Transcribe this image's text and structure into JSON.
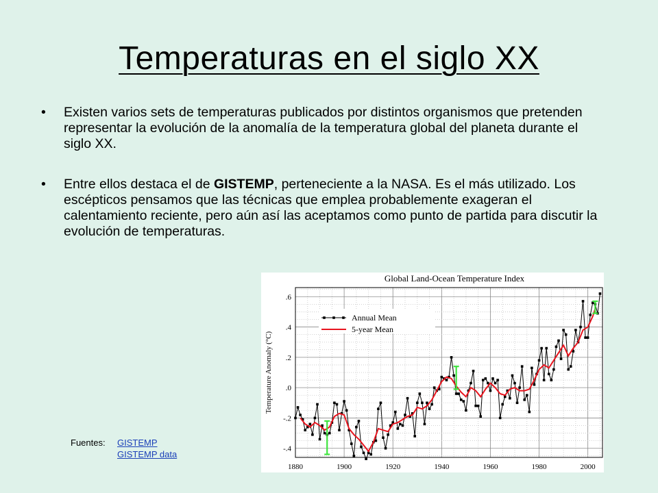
{
  "slide": {
    "title": "Temperaturas en el siglo XX",
    "bullets": [
      {
        "text": "Existen varios sets de temperaturas publicados por distintos organismos que pretenden representar la evolución de la anomalía de la temperatura global del planeta durante el siglo XX."
      },
      {
        "before": "Entre ellos destaca el de ",
        "bold": "GISTEMP",
        "after": ", perteneciente a la NASA. Es el más utilizado. Los escépticos pensamos que las técnicas que emplea probablemente exageran el calentamiento reciente, pero aún así las aceptamos como punto de partida para discutir la evolución de temperaturas."
      }
    ],
    "bullet_symbol": "•",
    "sources": {
      "label": "Fuentes: ",
      "links": [
        "GISTEMP",
        "GISTEMP data"
      ]
    }
  },
  "colors": {
    "background": "#dff2ea",
    "annual": "#000000",
    "five_year": "#e8141e",
    "uncertainty": "#3fe43f",
    "link": "#1a3fb8"
  },
  "chart_data": {
    "type": "line",
    "title": "Global Land-Ocean Temperature Index",
    "xlabel": "",
    "ylabel": "Temperature Anomaly (°C)",
    "xlim": [
      1880,
      2006
    ],
    "ylim": [
      -0.46,
      0.66
    ],
    "xticks": [
      1880,
      1900,
      1920,
      1940,
      1960,
      1980,
      2000
    ],
    "yticks": [
      -0.4,
      -0.2,
      0.0,
      0.2,
      0.4,
      0.6
    ],
    "ytick_labels": [
      "-.4",
      "-.2",
      ".0",
      ".2",
      ".4",
      ".6"
    ],
    "grid": true,
    "legend_position": "top-left",
    "series": [
      {
        "name": "Annual Mean",
        "style": "line-with-square-markers",
        "x": [
          1880,
          1881,
          1882,
          1883,
          1884,
          1885,
          1886,
          1887,
          1888,
          1889,
          1890,
          1891,
          1892,
          1893,
          1894,
          1895,
          1896,
          1897,
          1898,
          1899,
          1900,
          1901,
          1902,
          1903,
          1904,
          1905,
          1906,
          1907,
          1908,
          1909,
          1910,
          1911,
          1912,
          1913,
          1914,
          1915,
          1916,
          1917,
          1918,
          1919,
          1920,
          1921,
          1922,
          1923,
          1924,
          1925,
          1926,
          1927,
          1928,
          1929,
          1930,
          1931,
          1932,
          1933,
          1934,
          1935,
          1936,
          1937,
          1938,
          1939,
          1940,
          1941,
          1942,
          1943,
          1944,
          1945,
          1946,
          1947,
          1948,
          1949,
          1950,
          1951,
          1952,
          1953,
          1954,
          1955,
          1956,
          1957,
          1958,
          1959,
          1960,
          1961,
          1962,
          1963,
          1964,
          1965,
          1966,
          1967,
          1968,
          1969,
          1970,
          1971,
          1972,
          1973,
          1974,
          1975,
          1976,
          1977,
          1978,
          1979,
          1980,
          1981,
          1982,
          1983,
          1984,
          1985,
          1986,
          1987,
          1988,
          1989,
          1990,
          1991,
          1992,
          1993,
          1994,
          1995,
          1996,
          1997,
          1998,
          1999,
          2000,
          2001,
          2002,
          2003,
          2004,
          2005
        ],
        "y": [
          -0.2,
          -0.13,
          -0.18,
          -0.21,
          -0.28,
          -0.26,
          -0.24,
          -0.31,
          -0.2,
          -0.11,
          -0.34,
          -0.25,
          -0.3,
          -0.31,
          -0.3,
          -0.23,
          -0.1,
          -0.11,
          -0.28,
          -0.17,
          -0.09,
          -0.15,
          -0.28,
          -0.37,
          -0.45,
          -0.26,
          -0.22,
          -0.39,
          -0.43,
          -0.47,
          -0.43,
          -0.44,
          -0.36,
          -0.35,
          -0.14,
          -0.1,
          -0.33,
          -0.4,
          -0.31,
          -0.25,
          -0.23,
          -0.16,
          -0.27,
          -0.24,
          -0.25,
          -0.18,
          -0.07,
          -0.19,
          -0.17,
          -0.32,
          -0.1,
          -0.04,
          -0.1,
          -0.24,
          -0.1,
          -0.14,
          -0.11,
          0.0,
          -0.02,
          -0.01,
          0.07,
          0.06,
          0.05,
          0.07,
          0.2,
          0.08,
          -0.04,
          -0.04,
          -0.08,
          -0.09,
          -0.15,
          -0.02,
          0.03,
          0.11,
          -0.12,
          -0.12,
          -0.19,
          0.05,
          0.06,
          0.03,
          -0.02,
          0.06,
          0.03,
          0.05,
          -0.2,
          -0.11,
          -0.06,
          -0.02,
          -0.07,
          0.08,
          0.03,
          -0.1,
          0.0,
          0.14,
          -0.08,
          -0.05,
          -0.16,
          0.13,
          0.02,
          0.09,
          0.18,
          0.26,
          0.05,
          0.26,
          0.09,
          0.05,
          0.12,
          0.27,
          0.31,
          0.19,
          0.38,
          0.35,
          0.12,
          0.14,
          0.24,
          0.38,
          0.3,
          0.4,
          0.57,
          0.33,
          0.33,
          0.48,
          0.56,
          0.55,
          0.49,
          0.62
        ]
      },
      {
        "name": "5-year Mean",
        "style": "line",
        "x": [
          1882,
          1884,
          1886,
          1888,
          1890,
          1892,
          1894,
          1896,
          1898,
          1900,
          1902,
          1904,
          1906,
          1908,
          1910,
          1912,
          1914,
          1916,
          1918,
          1920,
          1922,
          1924,
          1926,
          1928,
          1930,
          1932,
          1934,
          1936,
          1938,
          1940,
          1942,
          1944,
          1946,
          1948,
          1950,
          1952,
          1954,
          1956,
          1958,
          1960,
          1962,
          1964,
          1966,
          1968,
          1970,
          1972,
          1974,
          1976,
          1978,
          1980,
          1982,
          1984,
          1986,
          1988,
          1990,
          1992,
          1994,
          1996,
          1998,
          2000,
          2002,
          2003
        ],
        "y": [
          -0.2,
          -0.24,
          -0.26,
          -0.23,
          -0.25,
          -0.28,
          -0.26,
          -0.19,
          -0.17,
          -0.18,
          -0.27,
          -0.31,
          -0.34,
          -0.38,
          -0.42,
          -0.36,
          -0.27,
          -0.28,
          -0.29,
          -0.24,
          -0.23,
          -0.21,
          -0.19,
          -0.18,
          -0.13,
          -0.14,
          -0.12,
          -0.08,
          -0.02,
          0.04,
          0.07,
          0.06,
          0.01,
          -0.03,
          -0.06,
          0.0,
          -0.02,
          -0.06,
          -0.01,
          0.03,
          0.0,
          -0.04,
          -0.05,
          -0.01,
          0.0,
          -0.02,
          -0.02,
          -0.01,
          0.05,
          0.12,
          0.15,
          0.13,
          0.18,
          0.23,
          0.28,
          0.21,
          0.26,
          0.3,
          0.38,
          0.4,
          0.47,
          0.52
        ]
      }
    ],
    "uncertainty_bars": [
      {
        "x": 1893,
        "low": -0.44,
        "high": -0.22
      },
      {
        "x": 1946,
        "low": -0.01,
        "high": 0.14
      },
      {
        "x": 2003,
        "low": 0.49,
        "high": 0.57
      }
    ]
  }
}
